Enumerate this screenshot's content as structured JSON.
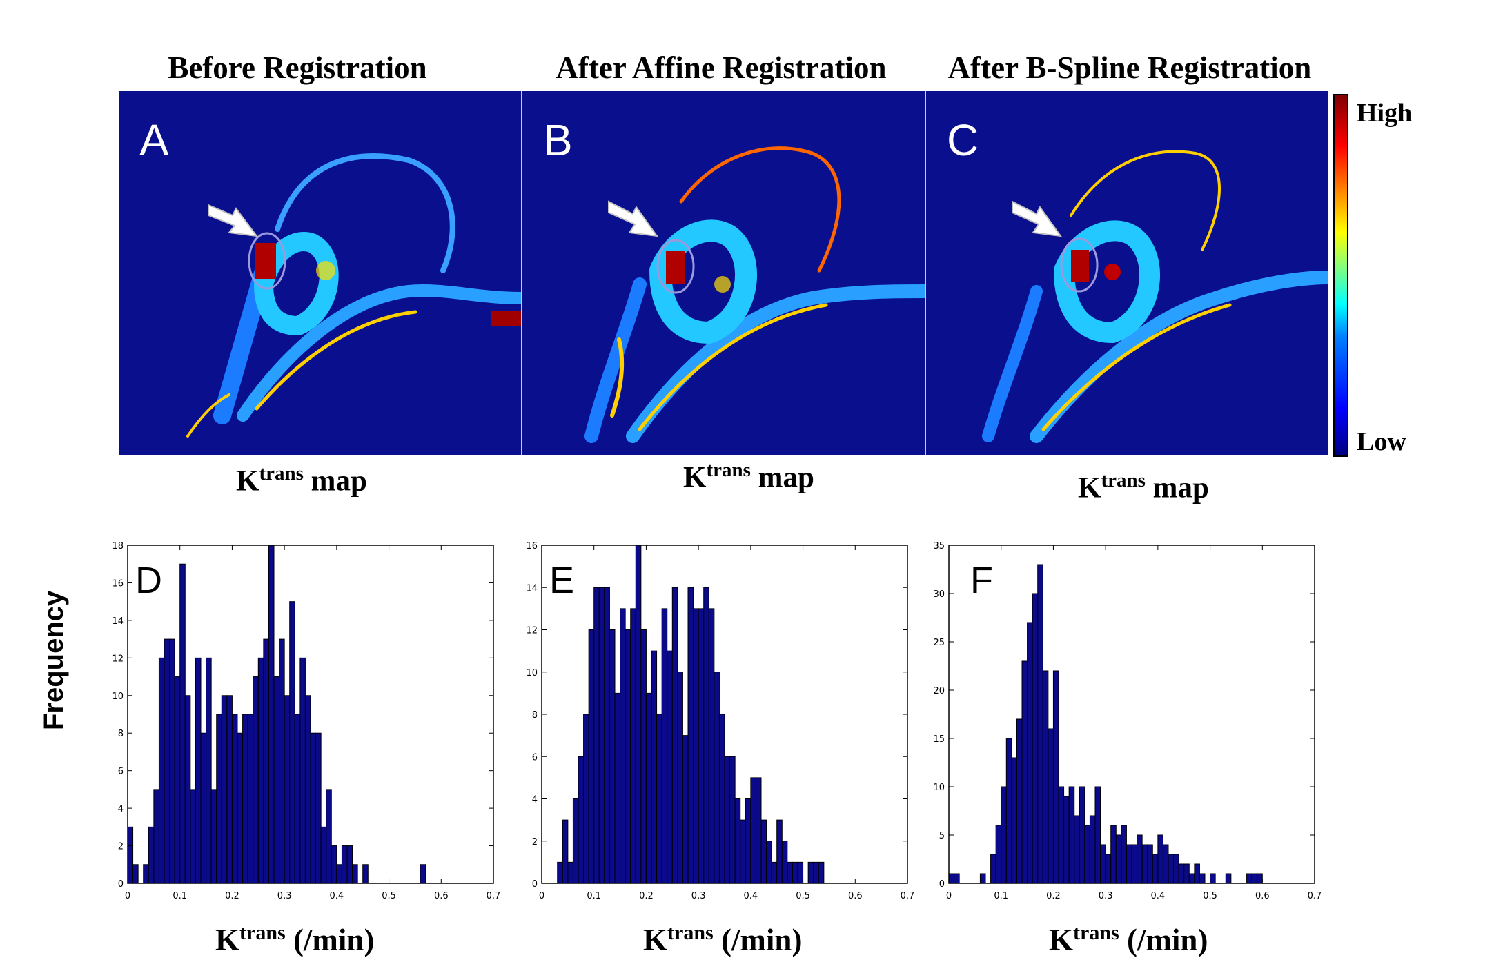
{
  "titles": {
    "a": "Before Registration",
    "b": "After Affine Registration",
    "c": "After B-Spline Registration"
  },
  "map_letters": {
    "a": "A",
    "b": "B",
    "c": "C"
  },
  "ktrans_label": {
    "k": "K",
    "sup": "trans",
    "map": "map"
  },
  "colorbar": {
    "high": "High",
    "low": "Low"
  },
  "hist_letters": {
    "d": "D",
    "e": "E",
    "f": "F"
  },
  "ylabel": "Frequency",
  "xlabel": {
    "k": "K",
    "sup": "trans",
    "unit": "(/min)"
  },
  "colors": {
    "map_bg": "#0a0f8e",
    "bar_fill": "#0a0a8a"
  },
  "chart_data": [
    {
      "type": "bar",
      "panel": "D",
      "xlim": [
        0,
        0.7
      ],
      "ylim": [
        0,
        18
      ],
      "xticks": [
        0,
        0.1,
        0.2,
        0.3,
        0.4,
        0.5,
        0.6,
        0.7
      ],
      "yticks": [
        0,
        2,
        4,
        6,
        8,
        10,
        12,
        14,
        16,
        18
      ],
      "bin_start": 0,
      "bin_width": 0.01,
      "values": [
        3,
        1,
        0,
        1,
        3,
        5,
        12,
        13,
        13,
        11,
        17,
        10,
        5,
        12,
        8,
        12,
        5,
        9,
        10,
        10,
        9,
        8,
        9,
        9,
        11,
        12,
        13,
        18,
        11,
        13,
        10,
        15,
        9,
        12,
        10,
        8,
        8,
        3,
        5,
        2,
        1,
        2,
        2,
        1,
        0,
        1,
        0,
        0,
        0,
        0,
        0,
        0,
        0,
        0,
        0,
        0,
        1
      ]
    },
    {
      "type": "bar",
      "panel": "E",
      "xlim": [
        0,
        0.7
      ],
      "ylim": [
        0,
        16
      ],
      "xticks": [
        0,
        0.1,
        0.2,
        0.3,
        0.4,
        0.5,
        0.6,
        0.7
      ],
      "yticks": [
        0,
        2,
        4,
        6,
        8,
        10,
        12,
        14,
        16
      ],
      "bin_start": 0.03,
      "bin_width": 0.01,
      "values": [
        1,
        3,
        1,
        4,
        6,
        8,
        12,
        14,
        14,
        14,
        12,
        9,
        13,
        12,
        13,
        16,
        12,
        9,
        11,
        8,
        13,
        11,
        14,
        10,
        7,
        14,
        13,
        13,
        14,
        13,
        10,
        8,
        6,
        6,
        4,
        3,
        4,
        5,
        5,
        3,
        2,
        1,
        3,
        2,
        1,
        1,
        1,
        0,
        1,
        1,
        1
      ],
      "values_note_ignore": null
    },
    {
      "type": "bar",
      "panel": "F",
      "xlim": [
        0,
        0.7
      ],
      "ylim": [
        0,
        35
      ],
      "xticks": [
        0,
        0.1,
        0.2,
        0.3,
        0.4,
        0.5,
        0.6,
        0.7
      ],
      "yticks": [
        0,
        5,
        10,
        15,
        20,
        25,
        30,
        35
      ],
      "bin_start": 0,
      "bin_width": 0.01,
      "values": [
        1,
        1,
        0,
        0,
        0,
        0,
        1,
        0,
        3,
        6,
        10,
        15,
        13,
        17,
        23,
        27,
        30,
        33,
        22,
        16,
        22,
        10,
        9,
        10,
        7,
        10,
        6,
        7,
        10,
        4,
        3,
        6,
        5,
        6,
        4,
        4,
        5,
        4,
        4,
        3,
        5,
        4,
        3,
        3,
        2,
        2,
        1,
        2,
        1,
        0,
        1,
        0,
        0,
        1,
        0,
        0,
        0,
        1,
        1,
        1
      ]
    }
  ]
}
